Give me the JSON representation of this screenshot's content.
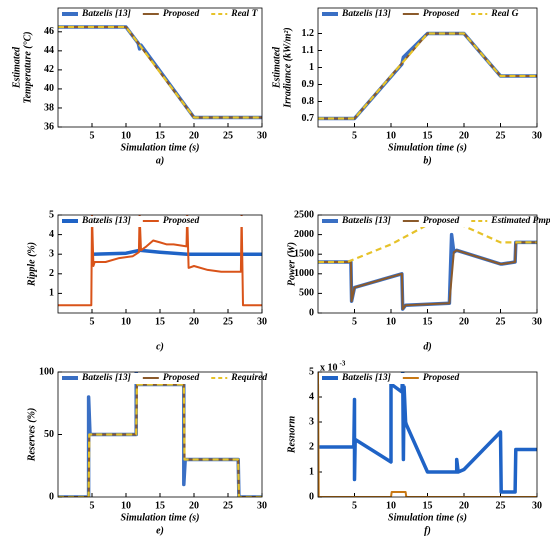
{
  "chart_data": [
    {
      "type": "line",
      "ylabel": [
        "Estimated",
        "Temperature (°C)"
      ],
      "xlabel": "Simulation time (s)",
      "caption": "a)",
      "xlim": [
        0,
        30
      ],
      "xticks": [
        5,
        10,
        15,
        20,
        25,
        30
      ],
      "ylim": [
        36,
        48.5
      ],
      "yticks": [
        36,
        38,
        40,
        42,
        44,
        46
      ],
      "series": [
        {
          "name": "Batzelis [13]",
          "color": "#3a6fc4",
          "x": [
            0,
            10,
            11.8,
            12,
            12.2,
            20,
            30
          ],
          "values": [
            46.5,
            46.5,
            44.8,
            44.2,
            44.6,
            37,
            37
          ]
        },
        {
          "name": "Proposed",
          "color": "#8b5a2b",
          "x": [
            0,
            10,
            20,
            30
          ],
          "values": [
            46.5,
            46.5,
            37,
            37
          ]
        },
        {
          "name": "Real T",
          "color": "#e6c229",
          "dashed": true,
          "x": [
            0,
            10,
            20,
            30
          ],
          "values": [
            46.5,
            46.5,
            37,
            37
          ]
        }
      ]
    },
    {
      "type": "line",
      "ylabel": [
        "Estimated",
        "Irradiance (kW/m²)"
      ],
      "xlabel": "Simulation time (s)",
      "caption": "b)",
      "xlim": [
        0,
        30
      ],
      "xticks": [
        5,
        10,
        15,
        20,
        25,
        30
      ],
      "ylim": [
        0.65,
        1.35
      ],
      "yticks": [
        0.7,
        0.8,
        0.9,
        1,
        1.1,
        1.2
      ],
      "series": [
        {
          "name": "Batzelis [13]",
          "color": "#3a6fc4",
          "x": [
            0,
            5,
            11.5,
            11.7,
            15,
            20,
            25,
            30
          ],
          "values": [
            0.7,
            0.7,
            1.02,
            1.06,
            1.2,
            1.2,
            0.95,
            0.95
          ]
        },
        {
          "name": "Proposed",
          "color": "#8b5a2b",
          "x": [
            0,
            5,
            15,
            20,
            25,
            30
          ],
          "values": [
            0.7,
            0.7,
            1.2,
            1.2,
            0.95,
            0.95
          ]
        },
        {
          "name": "Real G",
          "color": "#e6c229",
          "dashed": true,
          "x": [
            0,
            5,
            15,
            20,
            25,
            30
          ],
          "values": [
            0.7,
            0.7,
            1.2,
            1.2,
            0.95,
            0.95
          ]
        }
      ]
    },
    {
      "type": "line",
      "ylabel": [
        "Ripple (%)"
      ],
      "xlabel": "",
      "caption": "c)",
      "xlim": [
        0,
        30
      ],
      "xticks": [
        5,
        10,
        15,
        20,
        25,
        30
      ],
      "ylim": [
        0,
        5
      ],
      "yticks": [
        1,
        2,
        3,
        4,
        5
      ],
      "series": [
        {
          "name": "Batzelis [13]",
          "color": "#1f63c6",
          "x": [
            5,
            10,
            12,
            15,
            19,
            30
          ],
          "values": [
            3,
            3.05,
            3.2,
            3.1,
            3,
            3
          ]
        },
        {
          "name": "Proposed",
          "color": "#d95319",
          "x": [
            0,
            4.9,
            5,
            5.2,
            5.4,
            7,
            9,
            11,
            11.9,
            12,
            12.2,
            13,
            14,
            15,
            16,
            17,
            18.9,
            19,
            19.2,
            20,
            22,
            24,
            25,
            26.9,
            27,
            27.2,
            30
          ],
          "values": [
            0.4,
            0.4,
            5,
            2.4,
            2.6,
            2.6,
            2.8,
            2.9,
            3.1,
            5,
            3.2,
            3.4,
            3.7,
            3.6,
            3.5,
            3.5,
            3.4,
            5,
            2.3,
            2.4,
            2.2,
            2.1,
            2.1,
            2.1,
            5,
            0.4,
            0.4
          ]
        }
      ]
    },
    {
      "type": "line",
      "ylabel": [
        "Power (W)"
      ],
      "xlabel": "",
      "caption": "d)",
      "xlim": [
        0,
        30
      ],
      "xticks": [
        5,
        10,
        15,
        20,
        25,
        30
      ],
      "ylim": [
        0,
        2500
      ],
      "yticks": [
        0,
        500,
        1000,
        1500,
        2000,
        2500
      ],
      "series": [
        {
          "name": "Batzelis [13]",
          "color": "#3a6fc4",
          "x": [
            0,
            4.5,
            4.6,
            5,
            11.5,
            11.6,
            12,
            18,
            18.3,
            18.6,
            19,
            25,
            25.2,
            27,
            27.1,
            30
          ],
          "values": [
            1300,
            1300,
            300,
            650,
            1000,
            100,
            200,
            250,
            2000,
            1550,
            1600,
            1250,
            1250,
            1300,
            1800,
            1800
          ]
        },
        {
          "name": "Proposed",
          "color": "#8b5a2b",
          "x": [
            0,
            4.5,
            4.6,
            5,
            11.5,
            11.6,
            12,
            18,
            18.6,
            19,
            25,
            25.2,
            27,
            27.1,
            30
          ],
          "values": [
            1300,
            1300,
            300,
            650,
            1000,
            100,
            200,
            250,
            1550,
            1600,
            1250,
            1250,
            1300,
            1800,
            1800
          ]
        },
        {
          "name": "Estimated Pmpp",
          "color": "#e6c229",
          "dashed": true,
          "x": [
            0,
            4,
            10,
            15,
            19,
            25,
            30
          ],
          "values": [
            1300,
            1300,
            1750,
            2250,
            2300,
            1800,
            1800
          ]
        }
      ]
    },
    {
      "type": "line",
      "ylabel": [
        "Reserves (%)"
      ],
      "xlabel": "Simulation time (s)",
      "caption": "e)",
      "xlim": [
        0,
        30
      ],
      "xticks": [
        5,
        10,
        15,
        20,
        25,
        30
      ],
      "ylim": [
        0,
        100
      ],
      "yticks": [
        0,
        50,
        100
      ],
      "series": [
        {
          "name": "Batzelis [13]",
          "color": "#3a6fc4",
          "x": [
            0,
            4.5,
            4.5,
            4.7,
            11.5,
            11.5,
            11.7,
            18.5,
            18.5,
            18.7,
            26.5,
            26.6,
            30
          ],
          "values": [
            0,
            0,
            80,
            50,
            50,
            100,
            90,
            90,
            10,
            30,
            30,
            0,
            0
          ]
        },
        {
          "name": "Proposed",
          "color": "#8b5a2b",
          "x": [
            0,
            4.5,
            4.6,
            11.5,
            11.6,
            18.5,
            18.6,
            26.5,
            26.6,
            30
          ],
          "values": [
            0,
            0,
            50,
            50,
            90,
            90,
            30,
            30,
            0,
            0
          ]
        },
        {
          "name": "Required",
          "color": "#e6c229",
          "dashed": true,
          "x": [
            0,
            4.5,
            4.6,
            11.5,
            11.6,
            18.5,
            18.6,
            26.5,
            26.6,
            30
          ],
          "values": [
            0,
            0,
            50,
            50,
            90,
            90,
            30,
            30,
            0,
            0
          ]
        }
      ]
    },
    {
      "type": "line",
      "ylabel": [
        "Resnorm"
      ],
      "xlabel": "Simulation time (s)",
      "caption": "f)",
      "multiplier": "x 10",
      "multiplier_exp": "-3",
      "xlim": [
        0,
        30
      ],
      "xticks": [
        5,
        10,
        15,
        20,
        25,
        30
      ],
      "ylim": [
        0,
        0.005
      ],
      "yticks": [
        {
          "value": 0,
          "label": "0"
        },
        {
          "value": 0.001,
          "label": "1"
        },
        {
          "value": 0.002,
          "label": "2"
        },
        {
          "value": 0.003,
          "label": "3"
        },
        {
          "value": 0.004,
          "label": "4"
        },
        {
          "value": 0.005,
          "label": "5"
        }
      ],
      "series": [
        {
          "name": "Batzelis [13]",
          "color": "#1f63c6",
          "x": [
            0,
            4.9,
            5,
            5,
            5.1,
            10,
            10,
            10.1,
            11.5,
            11.6,
            11.7,
            11.8,
            12,
            12.1,
            15,
            19,
            19,
            19.2,
            20,
            25,
            25.1,
            27,
            27.1,
            30
          ],
          "values": [
            0.002,
            0.002,
            0.0039,
            0.0007,
            0.0023,
            0.0014,
            0.0046,
            0.0045,
            0.0042,
            0.005,
            0.0015,
            0.0044,
            0.003,
            0.0029,
            0.001,
            0.001,
            0.0015,
            0.001,
            0.0011,
            0.0026,
            0.0002,
            0.0002,
            0.0019,
            0.0019
          ]
        },
        {
          "name": "Proposed",
          "color": "#c87814",
          "x": [
            0,
            0.1,
            0.2,
            10,
            10.1,
            12,
            12.1,
            30
          ],
          "values": [
            0.005,
            0,
            0,
            0,
            0.0002,
            0.0002,
            0,
            0
          ]
        }
      ]
    }
  ]
}
